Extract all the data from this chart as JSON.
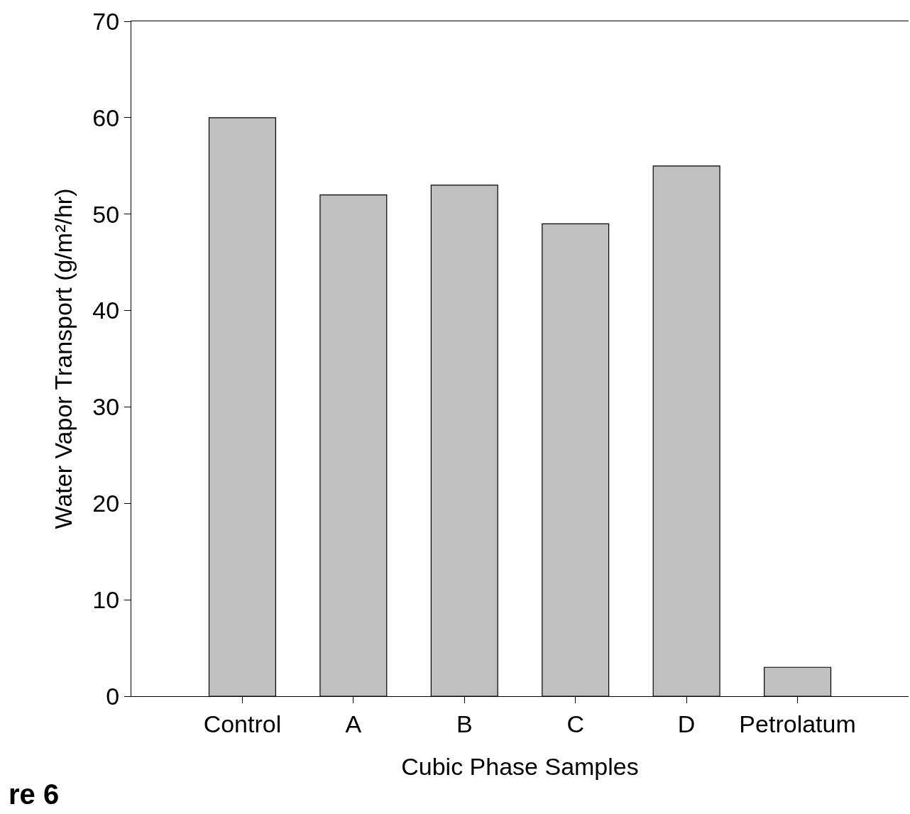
{
  "chart_data": {
    "type": "bar",
    "xlabel": "Cubic Phase Samples",
    "ylabel": "Water Vapor Transport (g/m²/hr)",
    "categories": [
      "Control",
      "A",
      "B",
      "C",
      "D",
      "Petrolatum"
    ],
    "values": [
      60,
      52,
      53,
      49,
      55,
      3
    ],
    "color": "#c0c0c0",
    "ylim": [
      0,
      70
    ],
    "yticks": [
      0,
      10,
      20,
      30,
      40,
      50,
      60,
      70
    ],
    "grid": false,
    "annotations": [
      "re 6"
    ]
  }
}
